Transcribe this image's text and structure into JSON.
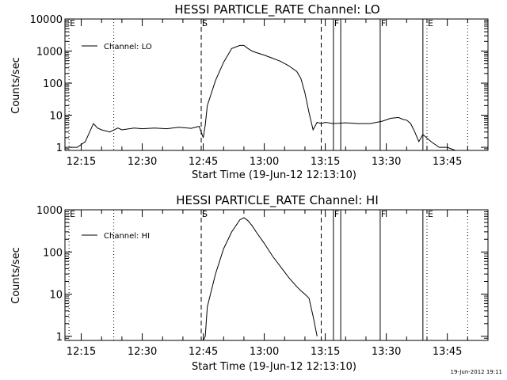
{
  "stamp": "19-Jun-2012 19:11",
  "chart_data": [
    {
      "type": "line",
      "title": "HESSI PARTICLE_RATE Channel: LO",
      "xlabel": "Start Time (19-Jun-12 12:13:10)",
      "ylabel": "Counts/sec",
      "yscale": "log",
      "xlim": [
        "12:11",
        "13:55"
      ],
      "ylim": [
        0.8,
        10000
      ],
      "x_ticks": [
        "12:15",
        "12:30",
        "12:45",
        "13:00",
        "13:15",
        "13:30",
        "13:45"
      ],
      "y_ticks": [
        "1",
        "10",
        "100",
        "1000",
        "10000"
      ],
      "legend": "top-left",
      "grid": false,
      "series": [
        {
          "name": "Channel: LO",
          "x": [
            "12:12",
            "12:14",
            "12:16",
            "12:18",
            "12:19",
            "12:20",
            "12:22",
            "12:24",
            "12:25",
            "12:28",
            "12:30",
            "12:33",
            "12:36",
            "12:39",
            "12:42",
            "12:44",
            "12:45",
            "12:45.5",
            "12:46",
            "12:48",
            "12:50",
            "12:52",
            "12:54",
            "12:55",
            "12:56",
            "12:57",
            "12:58",
            "13:00",
            "13:02",
            "13:04",
            "13:06",
            "13:08",
            "13:09",
            "13:10",
            "13:11",
            "13:12",
            "13:13",
            "13:14",
            "13:15",
            "13:17",
            "13:20",
            "13:23",
            "13:26",
            "13:29",
            "13:31",
            "13:33",
            "13:34",
            "13:35",
            "13:36",
            "13:37",
            "13:38",
            "13:39",
            "13:41",
            "13:43",
            "13:45",
            "13:47",
            "13:50",
            "13:53",
            "13:55"
          ],
          "y": [
            1,
            1,
            1.5,
            5.5,
            4,
            3.5,
            3,
            4,
            3.5,
            4,
            3.8,
            4,
            3.8,
            4.2,
            3.9,
            4.5,
            2,
            5,
            20,
            120,
            450,
            1200,
            1500,
            1500,
            1200,
            1000,
            900,
            750,
            600,
            480,
            350,
            230,
            140,
            50,
            12,
            3.5,
            6,
            5.5,
            6,
            5.5,
            5.8,
            5.5,
            5.5,
            6.5,
            8,
            8.5,
            7.5,
            7,
            5.5,
            3,
            1.5,
            2.5,
            1.5,
            1,
            1,
            0.8,
            0.8,
            0.8,
            0.8
          ]
        }
      ],
      "markers": [
        {
          "label": "E",
          "x": "12:12",
          "style": "dotted"
        },
        {
          "label": "",
          "x": "12:23",
          "style": "dotted"
        },
        {
          "label": "S",
          "x": "12:44.5",
          "style": "dashed"
        },
        {
          "label": "",
          "x": "13:14",
          "style": "dashed"
        },
        {
          "label": "F",
          "x": "13:17",
          "style": "solid"
        },
        {
          "label": "",
          "x": "13:18.8",
          "style": "solid"
        },
        {
          "label": "F",
          "x": "13:28.5",
          "style": "solid"
        },
        {
          "label": "",
          "x": "13:39",
          "style": "solid"
        },
        {
          "label": "E",
          "x": "13:40",
          "style": "dotted"
        },
        {
          "label": "",
          "x": "13:50",
          "style": "dotted"
        }
      ]
    },
    {
      "type": "line",
      "title": "HESSI PARTICLE_RATE Channel: HI",
      "xlabel": "Start Time (19-Jun-12 12:13:10)",
      "ylabel": "Counts/sec",
      "yscale": "log",
      "xlim": [
        "12:11",
        "13:55"
      ],
      "ylim": [
        0.8,
        1000
      ],
      "x_ticks": [
        "12:15",
        "12:30",
        "12:45",
        "13:00",
        "13:15",
        "13:30",
        "13:45"
      ],
      "y_ticks": [
        "1",
        "10",
        "100",
        "1000"
      ],
      "legend": "top-left",
      "grid": false,
      "series": [
        {
          "name": "Channel: HI",
          "x": [
            "12:45",
            "12:45.5",
            "12:46",
            "12:48",
            "12:50",
            "12:52",
            "12:54",
            "12:55",
            "12:56",
            "12:57",
            "12:58",
            "13:00",
            "13:02",
            "13:04",
            "13:06",
            "13:08",
            "13:09",
            "13:10",
            "13:11",
            "13:12",
            "13:13"
          ],
          "y": [
            0.8,
            1,
            5,
            30,
            120,
            300,
            580,
            650,
            550,
            420,
            300,
            160,
            80,
            45,
            25,
            15,
            12,
            10,
            8,
            3,
            1
          ]
        }
      ],
      "markers": [
        {
          "label": "E",
          "x": "12:12",
          "style": "dotted"
        },
        {
          "label": "",
          "x": "12:23",
          "style": "dotted"
        },
        {
          "label": "S",
          "x": "12:44.5",
          "style": "dashed"
        },
        {
          "label": "",
          "x": "13:14",
          "style": "dashed"
        },
        {
          "label": "F",
          "x": "13:17",
          "style": "solid"
        },
        {
          "label": "",
          "x": "13:18.8",
          "style": "solid"
        },
        {
          "label": "F",
          "x": "13:28.5",
          "style": "solid"
        },
        {
          "label": "",
          "x": "13:39",
          "style": "solid"
        },
        {
          "label": "E",
          "x": "13:40",
          "style": "dotted"
        },
        {
          "label": "",
          "x": "13:50",
          "style": "dotted"
        }
      ]
    }
  ]
}
